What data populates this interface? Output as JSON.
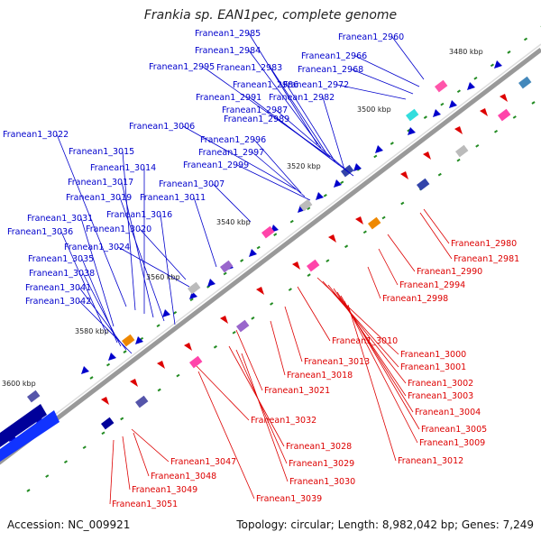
{
  "title": "Frankia sp. EAN1pec, complete genome",
  "footer": {
    "accession": "Accession: NC_009921",
    "summary": "Topology: circular; Length: 8,982,042 bp; Genes: 7,249"
  },
  "colors": {
    "forward": "#0000cc",
    "reverse": "#dd0000",
    "backbone": "#888888",
    "tick": "#228B22"
  },
  "positions": [
    "3480 kbp",
    "3500 kbp",
    "3520 kbp",
    "3540 kbp",
    "3560 kbp",
    "3580 kbp",
    "3600 kbp"
  ],
  "forward_genes": [
    "Franean1_2960",
    "Franean1_2966",
    "Franean1_2968",
    "Franean1_2972",
    "Franean1_2985",
    "Franean1_2984",
    "Franean1_2983",
    "Franean1_2995",
    "Franean1_2986",
    "Franean1_2991",
    "Franean1_2982",
    "Franean1_2987",
    "Franean1_2989",
    "Franean1_3006",
    "Franean1_2996",
    "Franean1_2997",
    "Franean1_2999",
    "Franean1_3022",
    "Franean1_3015",
    "Franean1_3014",
    "Franean1_3017",
    "Franean1_3007",
    "Franean1_3019",
    "Franean1_3011",
    "Franean1_3016",
    "Franean1_3031",
    "Franean1_3020",
    "Franean1_3036",
    "Franean1_3024",
    "Franean1_3035",
    "Franean1_3038",
    "Franean1_3041",
    "Franean1_3042"
  ],
  "reverse_genes": [
    "Franean1_2980",
    "Franean1_2981",
    "Franean1_2990",
    "Franean1_2994",
    "Franean1_2998",
    "Franean1_3010",
    "Franean1_3000",
    "Franean1_3001",
    "Franean1_3013",
    "Franean1_3018",
    "Franean1_3002",
    "Franean1_3003",
    "Franean1_3021",
    "Franean1_3004",
    "Franean1_3005",
    "Franean1_3032",
    "Franean1_3009",
    "Franean1_3028",
    "Franean1_3012",
    "Franean1_3047",
    "Franean1_3029",
    "Franean1_3048",
    "Franean1_3030",
    "Franean1_3049",
    "Franean1_3039",
    "Franean1_3051"
  ]
}
